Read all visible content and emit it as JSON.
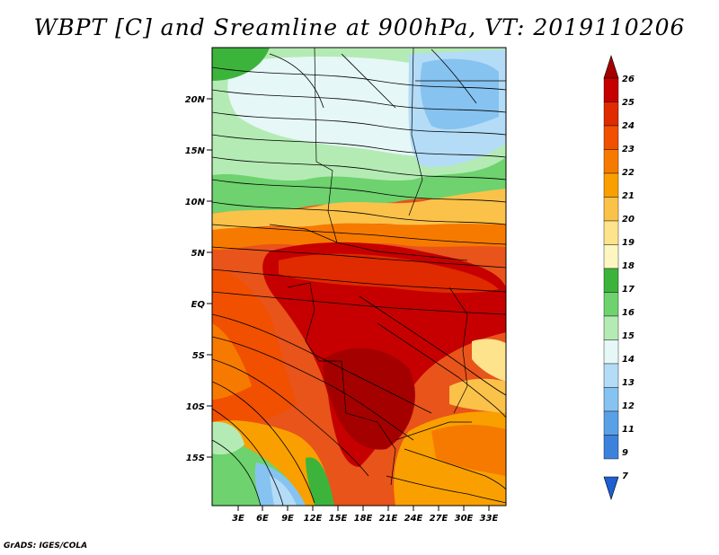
{
  "title": "WBPT [C] and Sreamline at 900hPa, VT: 2019110206",
  "credit": "GrADS: IGES/COLA",
  "lat_labels": [
    "20N",
    "15N",
    "10N",
    "5N",
    "EQ",
    "5S",
    "10S",
    "15S"
  ],
  "lon_labels": [
    "3E",
    "6E",
    "9E",
    "12E",
    "15E",
    "18E",
    "21E",
    "24E",
    "27E",
    "30E",
    "33E"
  ],
  "colorbar": {
    "labels": [
      "26",
      "25",
      "24",
      "23",
      "22",
      "21",
      "20",
      "19",
      "18",
      "17",
      "16",
      "15",
      "14",
      "13",
      "12",
      "11",
      "9",
      "7"
    ],
    "colors": [
      "#a50000",
      "#c60000",
      "#e02a00",
      "#f05000",
      "#f77a00",
      "#f9a000",
      "#fbc24a",
      "#fde38c",
      "#fdf6c0",
      "#3cb43c",
      "#6ed26e",
      "#b4ebb4",
      "#e6f7f7",
      "#b4dcf7",
      "#87c3f0",
      "#5aa0e6",
      "#3c82dc",
      "#1e5fd2"
    ]
  }
}
